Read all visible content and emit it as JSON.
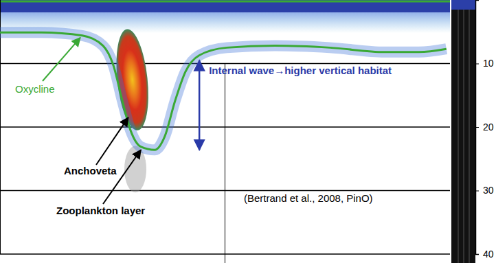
{
  "chart_data": {
    "type": "line",
    "tick_labels": "y",
    "xlim": [
      0,
      100
    ],
    "ylim": [
      0,
      40
    ],
    "yticks": [
      10,
      20,
      30,
      40
    ],
    "grid": true,
    "x": [
      0,
      9.2,
      18.3,
      22.9,
      25.2,
      27.2,
      29,
      31.3,
      34.4,
      36.6,
      38.9,
      41.2,
      44.3,
      50.4,
      61.1,
      73.3,
      85.5,
      93.1,
      99.2
    ],
    "series": [
      {
        "name": "Oxycline",
        "color": "#3aa935",
        "values": [
          5.1,
          5.1,
          5.6,
          7.2,
          10.3,
          15.9,
          20.5,
          23.1,
          23.6,
          21.5,
          15.9,
          11.3,
          8.7,
          7.5,
          7.2,
          7.5,
          8.2,
          8.2,
          7.7
        ]
      }
    ],
    "annotations": [
      {
        "text": "Anchoveta",
        "x": 28.5,
        "y": 18.5
      },
      {
        "text": "Zooplankton layer",
        "x": 31.3,
        "y": 23.6
      },
      {
        "text": "Internal wave→higher vertical habitat",
        "color": "#2a3aa8",
        "x": 44.3,
        "y": [
          9.5,
          23.6
        ]
      },
      {
        "text": "(Bertrand et al., 2008, PinO)"
      }
    ]
  }
}
